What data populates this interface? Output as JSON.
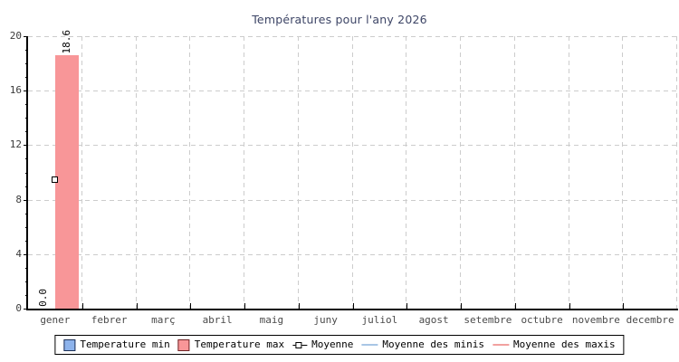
{
  "title": "Températures pour l'any 2026",
  "colors": {
    "background": "#ffffff",
    "title": "#3d4566",
    "axis": "#000000",
    "grid": "#cccccc",
    "y_tick_label": "#3a3a3a",
    "month_label": "#4a4a4a",
    "bar_value_label": "#000000",
    "legend_border": "#000000",
    "legend_text": "#000000"
  },
  "chart_data": {
    "type": "bar",
    "title": "Températures pour l'any 2026",
    "categories": [
      "gener",
      "febrer",
      "març",
      "abril",
      "maig",
      "juny",
      "juliol",
      "agost",
      "setembre",
      "octubre",
      "novembre",
      "decembre"
    ],
    "ylim": [
      0,
      20
    ],
    "yticks": [
      0,
      4,
      8,
      12,
      16,
      20
    ],
    "y_minor_step": 1,
    "grid_style": "dashed",
    "legend_position": "bottom",
    "series": [
      {
        "name": "Temperature min",
        "kind": "bar",
        "fill": "#8db3ec",
        "legend_border": "#1e3157",
        "values": [
          0,
          null,
          null,
          null,
          null,
          null,
          null,
          null,
          null,
          null,
          null,
          null
        ]
      },
      {
        "name": "Temperature max",
        "kind": "bar",
        "fill": "#f89698",
        "legend_border": "#6f2527",
        "values": [
          18.6,
          null,
          null,
          null,
          null,
          null,
          null,
          null,
          null,
          null,
          null,
          null
        ]
      },
      {
        "name": "Moyenne",
        "kind": "point",
        "fill": "#ffffff",
        "stroke": "#000000",
        "values": [
          9.5,
          null,
          null,
          null,
          null,
          null,
          null,
          null,
          null,
          null,
          null,
          null
        ]
      },
      {
        "name": "Moyenne des minis",
        "kind": "line",
        "stroke": "#a9c6e5",
        "values": [
          null,
          null,
          null,
          null,
          null,
          null,
          null,
          null,
          null,
          null,
          null,
          null
        ]
      },
      {
        "name": "Moyenne des maxis",
        "kind": "line",
        "stroke": "#f2a19f",
        "values": [
          null,
          null,
          null,
          null,
          null,
          null,
          null,
          null,
          null,
          null,
          null,
          null
        ]
      }
    ],
    "bar_value_labels": [
      "0.0",
      "18.6"
    ]
  }
}
